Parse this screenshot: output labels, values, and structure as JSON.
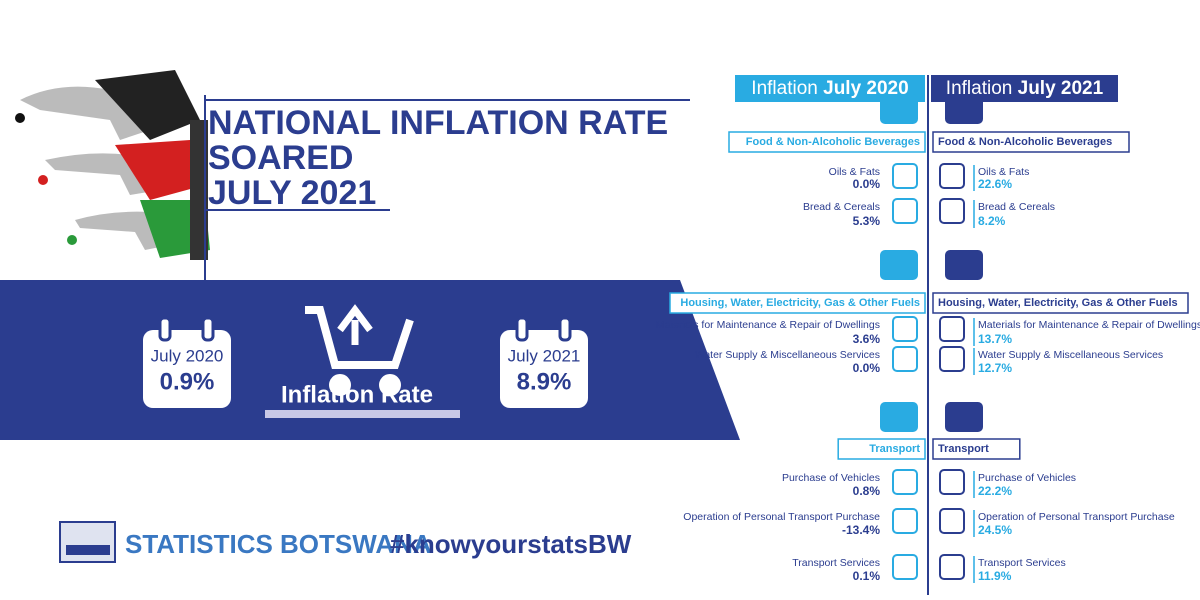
{
  "title": {
    "lines": [
      "NATIONAL INFLATION RATE",
      "SOARED",
      "JULY 2021"
    ]
  },
  "banner": {
    "left": {
      "label": "July 2020",
      "value": "0.9%"
    },
    "center": "Inflation Rate",
    "right": {
      "label": "July 2021",
      "value": "8.9%"
    }
  },
  "footer": {
    "organisation": "STATISTICS BOTSWANA",
    "hashtag": "#knowyourstatsBW"
  },
  "columns": [
    {
      "prefix": "Inflation",
      "period": "July 2020"
    },
    {
      "prefix": "Inflation",
      "period": "July 2021"
    }
  ],
  "sections": [
    {
      "title": "Food & Non-Alcoholic Beverages",
      "items": [
        {
          "label": "Oils & Fats",
          "values": [
            "0.0%",
            "22.6%"
          ]
        },
        {
          "label": "Bread & Cereals",
          "values": [
            "5.3%",
            "8.2%"
          ]
        }
      ]
    },
    {
      "title": "Housing, Water, Electricity,  Gas & Other Fuels",
      "items": [
        {
          "label": "Materials for Maintenance & Repair of Dwellings",
          "values": [
            "3.6%",
            "13.7%"
          ]
        },
        {
          "label": "Water Supply & Miscellaneous Services",
          "values": [
            "0.0%",
            "12.7%"
          ]
        }
      ]
    },
    {
      "title": "Transport",
      "items": [
        {
          "label": "Purchase of Vehicles",
          "values": [
            "0.8%",
            "22.2%"
          ]
        },
        {
          "label": "Operation of Personal Transport Purchase",
          "values": [
            "-13.4%",
            "24.5%"
          ]
        },
        {
          "label": "Transport Services",
          "values": [
            "0.1%",
            "11.9%"
          ]
        }
      ]
    }
  ]
}
